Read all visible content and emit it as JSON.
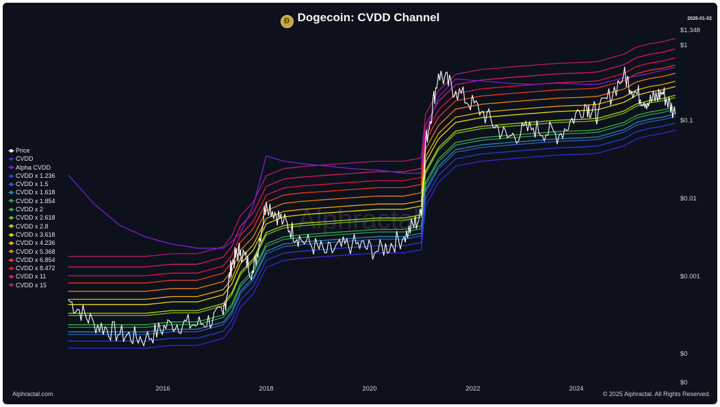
{
  "header": {
    "title": "Dogecoin: CVDD Channel",
    "date": "2026-01-02",
    "coin_glyph": "Ð"
  },
  "watermark": "Alphractal",
  "footer": {
    "left": "Alphractal.com",
    "right": "© 2025 Alphractal. All Rights Reserved."
  },
  "colors": {
    "background": "#0d111c",
    "price": "#ffffff",
    "bands": [
      "#3b27d9",
      "#7b1fd9",
      "#2a3fd0",
      "#2b5fc8",
      "#2f87a8",
      "#2f9e6a",
      "#3fae3a",
      "#78c01f",
      "#b8d41a",
      "#e9d80f",
      "#f2b10d",
      "#f07c10",
      "#ec3a1b",
      "#e31545",
      "#d81b6a",
      "#b51c6e"
    ]
  },
  "chart_data": {
    "type": "line",
    "title": "Dogecoin: CVDD Channel",
    "scale": "log",
    "x": [
      "2014-03",
      "2014-09",
      "2015-03",
      "2015-09",
      "2016-03",
      "2016-09",
      "2017-03",
      "2017-05",
      "2017-07",
      "2017-10",
      "2018-01",
      "2018-05",
      "2018-09",
      "2019-03",
      "2019-09",
      "2020-03",
      "2020-09",
      "2021-01",
      "2021-02",
      "2021-05",
      "2021-09",
      "2022-03",
      "2022-09",
      "2023-03",
      "2023-09",
      "2024-03",
      "2024-06",
      "2024-12",
      "2025-03",
      "2025-06",
      "2025-09",
      "2025-12"
    ],
    "y_ticks": [
      "$0",
      "$0.001",
      "$0.01",
      "$0.1",
      "$1",
      "$1.348"
    ],
    "x_ticks": [
      "2016",
      "2018",
      "2020",
      "2022",
      "2024"
    ],
    "grid": false,
    "legend_position": "left",
    "series": [
      {
        "name": "Price",
        "values": [
          0.0005,
          0.00025,
          0.00018,
          0.00016,
          0.00025,
          0.00024,
          0.00032,
          0.0015,
          0.0022,
          0.0011,
          0.009,
          0.005,
          0.003,
          0.002,
          0.0026,
          0.0021,
          0.0032,
          0.006,
          0.05,
          0.4,
          0.24,
          0.13,
          0.06,
          0.08,
          0.065,
          0.16,
          0.12,
          0.38,
          0.22,
          0.17,
          0.23,
          0.12
        ]
      },
      {
        "name": "CVDD",
        "values": [
          0.00012,
          0.00012,
          0.00012,
          0.00012,
          0.00013,
          0.00013,
          0.00016,
          0.00022,
          0.0004,
          0.0006,
          0.0013,
          0.0016,
          0.0017,
          0.0018,
          0.0019,
          0.002,
          0.002,
          0.0022,
          0.008,
          0.016,
          0.026,
          0.03,
          0.032,
          0.034,
          0.036,
          0.037,
          0.038,
          0.047,
          0.058,
          0.064,
          0.068,
          0.075
        ]
      },
      {
        "name": "Alpha CVDD",
        "values": [
          0.02,
          0.0085,
          0.0045,
          0.0032,
          0.0026,
          0.0023,
          0.0023,
          0.0028,
          0.0036,
          0.008,
          0.035,
          0.03,
          0.028,
          0.026,
          0.024,
          0.023,
          0.021,
          0.021,
          0.07,
          0.2,
          0.34,
          0.32,
          0.3,
          0.29,
          0.3,
          0.29,
          0.29,
          0.35,
          0.37,
          0.4,
          0.44,
          0.48
        ]
      },
      {
        "name": "CVDD x 1.236",
        "values": [
          0.000148,
          0.000148,
          0.000148,
          0.000148,
          0.000161,
          0.000161,
          0.000198,
          0.000272,
          0.000494,
          0.000742,
          0.00161,
          0.00198,
          0.0021,
          0.00222,
          0.00235,
          0.00247,
          0.00247,
          0.00272,
          0.00989,
          0.0198,
          0.0321,
          0.0371,
          0.0396,
          0.042,
          0.0445,
          0.0457,
          0.047,
          0.0581,
          0.0717,
          0.0791,
          0.084,
          0.0927
        ]
      },
      {
        "name": "CVDD x 1.5",
        "values": [
          0.00018,
          0.00018,
          0.00018,
          0.00018,
          0.000195,
          0.000195,
          0.00024,
          0.00033,
          0.0006,
          0.0009,
          0.00195,
          0.0024,
          0.00255,
          0.0027,
          0.00285,
          0.003,
          0.003,
          0.0033,
          0.012,
          0.024,
          0.039,
          0.045,
          0.048,
          0.051,
          0.054,
          0.0555,
          0.057,
          0.0705,
          0.087,
          0.096,
          0.102,
          0.1125
        ]
      },
      {
        "name": "CVDD x 1.618",
        "values": [
          0.000194,
          0.000194,
          0.000194,
          0.000194,
          0.00021,
          0.00021,
          0.000259,
          0.000356,
          0.000647,
          0.000971,
          0.0021,
          0.00259,
          0.00275,
          0.00291,
          0.00307,
          0.00324,
          0.00324,
          0.00356,
          0.0129,
          0.0259,
          0.0421,
          0.0485,
          0.0518,
          0.055,
          0.0582,
          0.0599,
          0.0615,
          0.076,
          0.0938,
          0.1036,
          0.11,
          0.1214
        ]
      },
      {
        "name": "CVDD x 1.854",
        "values": [
          0.000222,
          0.000222,
          0.000222,
          0.000222,
          0.000241,
          0.000241,
          0.000297,
          0.000408,
          0.000742,
          0.00111,
          0.00241,
          0.00297,
          0.00315,
          0.00334,
          0.00352,
          0.00371,
          0.00371,
          0.00408,
          0.0148,
          0.0297,
          0.0482,
          0.0556,
          0.0593,
          0.063,
          0.0667,
          0.0686,
          0.0705,
          0.0871,
          0.1075,
          0.1187,
          0.1261,
          0.139
        ]
      },
      {
        "name": "CVDD x 2",
        "values": [
          0.00024,
          0.00024,
          0.00024,
          0.00024,
          0.00026,
          0.00026,
          0.00032,
          0.00044,
          0.0008,
          0.0012,
          0.0026,
          0.0032,
          0.0034,
          0.0036,
          0.0038,
          0.004,
          0.004,
          0.0044,
          0.016,
          0.032,
          0.052,
          0.06,
          0.064,
          0.068,
          0.072,
          0.074,
          0.076,
          0.094,
          0.116,
          0.128,
          0.136,
          0.15
        ]
      },
      {
        "name": "CVDD x 2.618",
        "values": [
          0.000314,
          0.000314,
          0.000314,
          0.000314,
          0.00034,
          0.00034,
          0.000419,
          0.000576,
          0.00105,
          0.00157,
          0.0034,
          0.00419,
          0.00445,
          0.00471,
          0.00497,
          0.00524,
          0.00524,
          0.00576,
          0.0209,
          0.0419,
          0.0681,
          0.0785,
          0.0838,
          0.089,
          0.0942,
          0.0969,
          0.0995,
          0.123,
          0.1518,
          0.1676,
          0.178,
          0.1964
        ]
      },
      {
        "name": "CVDD x 2.8",
        "values": [
          0.000336,
          0.000336,
          0.000336,
          0.000336,
          0.000364,
          0.000364,
          0.000448,
          0.000616,
          0.00112,
          0.00168,
          0.00364,
          0.00448,
          0.00476,
          0.00504,
          0.00532,
          0.0056,
          0.0056,
          0.00616,
          0.0224,
          0.0448,
          0.0728,
          0.084,
          0.0896,
          0.0952,
          0.1008,
          0.1036,
          0.1064,
          0.1316,
          0.1624,
          0.1792,
          0.1904,
          0.21
        ]
      },
      {
        "name": "CVDD x 3.618",
        "values": [
          0.000434,
          0.000434,
          0.000434,
          0.000434,
          0.00047,
          0.00047,
          0.000579,
          0.000796,
          0.00145,
          0.00217,
          0.0047,
          0.00579,
          0.00615,
          0.00651,
          0.00687,
          0.00724,
          0.00724,
          0.00796,
          0.0289,
          0.0579,
          0.0941,
          0.1085,
          0.1158,
          0.123,
          0.1302,
          0.1339,
          0.1375,
          0.17,
          0.2098,
          0.2316,
          0.246,
          0.2714
        ]
      },
      {
        "name": "CVDD x 4.236",
        "values": [
          0.000508,
          0.000508,
          0.000508,
          0.000508,
          0.000551,
          0.000551,
          0.000678,
          0.000932,
          0.00169,
          0.00254,
          0.00551,
          0.00678,
          0.0072,
          0.00762,
          0.00805,
          0.00847,
          0.00847,
          0.00932,
          0.0339,
          0.0678,
          0.1101,
          0.1271,
          0.1356,
          0.144,
          0.1525,
          0.1567,
          0.161,
          0.1991,
          0.2457,
          0.2711,
          0.2881,
          0.3177
        ]
      },
      {
        "name": "CVDD x 5.368",
        "values": [
          0.000644,
          0.000644,
          0.000644,
          0.000644,
          0.000698,
          0.000698,
          0.000859,
          0.00118,
          0.00215,
          0.00322,
          0.00698,
          0.00859,
          0.00913,
          0.00966,
          0.0102,
          0.0107,
          0.0107,
          0.0118,
          0.0429,
          0.0859,
          0.1396,
          0.161,
          0.1718,
          0.1825,
          0.1932,
          0.1986,
          0.204,
          0.2523,
          0.3113,
          0.3436,
          0.365,
          0.4026
        ]
      },
      {
        "name": "CVDD x 6.854",
        "values": [
          0.000822,
          0.000822,
          0.000822,
          0.000822,
          0.000891,
          0.000891,
          0.0011,
          0.00151,
          0.00274,
          0.00411,
          0.00891,
          0.011,
          0.0117,
          0.0123,
          0.013,
          0.0137,
          0.0137,
          0.0151,
          0.0548,
          0.1097,
          0.1782,
          0.2056,
          0.2193,
          0.233,
          0.2467,
          0.2536,
          0.2605,
          0.3221,
          0.3975,
          0.4387,
          0.4661,
          0.514
        ]
      },
      {
        "name": "CVDD x 8.472",
        "values": [
          0.00102,
          0.00102,
          0.00102,
          0.00102,
          0.0011,
          0.0011,
          0.00136,
          0.00186,
          0.00339,
          0.00508,
          0.011,
          0.0136,
          0.0144,
          0.0152,
          0.0161,
          0.0169,
          0.0169,
          0.0186,
          0.0678,
          0.1356,
          0.2203,
          0.2542,
          0.2711,
          0.2881,
          0.305,
          0.3135,
          0.3219,
          0.3982,
          0.4914,
          0.5422,
          0.5761,
          0.6354
        ]
      },
      {
        "name": "CVDD x 11",
        "values": [
          0.00132,
          0.00132,
          0.00132,
          0.00132,
          0.00143,
          0.00143,
          0.00176,
          0.00242,
          0.0044,
          0.0066,
          0.0143,
          0.0176,
          0.0187,
          0.0198,
          0.0209,
          0.022,
          0.022,
          0.0242,
          0.088,
          0.176,
          0.286,
          0.33,
          0.352,
          0.374,
          0.396,
          0.407,
          0.418,
          0.517,
          0.638,
          0.704,
          0.748,
          0.825
        ]
      },
      {
        "name": "CVDD x 15",
        "values": [
          0.0018,
          0.0018,
          0.0018,
          0.0018,
          0.00195,
          0.00195,
          0.0024,
          0.0033,
          0.006,
          0.009,
          0.0195,
          0.024,
          0.0255,
          0.027,
          0.0285,
          0.03,
          0.03,
          0.033,
          0.12,
          0.24,
          0.39,
          0.45,
          0.48,
          0.51,
          0.54,
          0.555,
          0.57,
          0.705,
          0.87,
          0.96,
          1.02,
          1.125
        ]
      }
    ]
  }
}
